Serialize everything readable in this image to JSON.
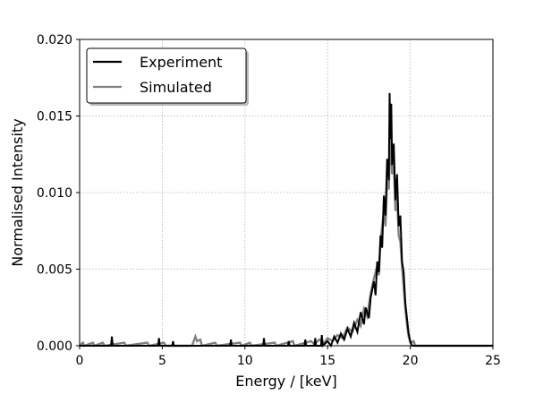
{
  "chart_data": {
    "type": "line",
    "xlabel": "Energy / [keV]",
    "ylabel": "Normalised Intensity",
    "xlim": [
      0,
      25
    ],
    "ylim": [
      0,
      0.02
    ],
    "xticks": [
      "0",
      "5",
      "10",
      "15",
      "20",
      "25"
    ],
    "yticks": [
      "0.000",
      "0.005",
      "0.010",
      "0.015",
      "0.020"
    ],
    "grid": true,
    "legend_position": "top-left",
    "series": [
      {
        "name": "Experiment",
        "color": "#000000",
        "points": [
          [
            0,
            0
          ],
          [
            1.9,
            0
          ],
          [
            1.95,
            0.0006
          ],
          [
            2.0,
            0
          ],
          [
            4.75,
            0
          ],
          [
            4.8,
            0.0005
          ],
          [
            4.85,
            0
          ],
          [
            5.6,
            0
          ],
          [
            5.65,
            0.0003
          ],
          [
            5.7,
            0
          ],
          [
            9.1,
            0
          ],
          [
            9.15,
            0.0004
          ],
          [
            9.2,
            0
          ],
          [
            11.1,
            0
          ],
          [
            11.15,
            0.0005
          ],
          [
            11.2,
            0
          ],
          [
            12.6,
            0
          ],
          [
            12.65,
            0.0003
          ],
          [
            12.7,
            0
          ],
          [
            13.6,
            0
          ],
          [
            13.65,
            0.0004
          ],
          [
            13.7,
            0
          ],
          [
            14.2,
            0
          ],
          [
            14.25,
            0.0005
          ],
          [
            14.3,
            0
          ],
          [
            14.6,
            0
          ],
          [
            14.65,
            0.0007
          ],
          [
            14.7,
            0
          ],
          [
            15.0,
            0.0003
          ],
          [
            15.2,
            0
          ],
          [
            15.4,
            0.0006
          ],
          [
            15.6,
            0.0002
          ],
          [
            15.8,
            0.0008
          ],
          [
            16.0,
            0.0004
          ],
          [
            16.2,
            0.0011
          ],
          [
            16.4,
            0.0006
          ],
          [
            16.6,
            0.0015
          ],
          [
            16.8,
            0.0009
          ],
          [
            17.0,
            0.0022
          ],
          [
            17.2,
            0.0014
          ],
          [
            17.3,
            0.0025
          ],
          [
            17.5,
            0.0018
          ],
          [
            17.6,
            0.0031
          ],
          [
            17.8,
            0.0042
          ],
          [
            17.9,
            0.0033
          ],
          [
            18.0,
            0.0055
          ],
          [
            18.1,
            0.0048
          ],
          [
            18.2,
            0.0072
          ],
          [
            18.3,
            0.0064
          ],
          [
            18.4,
            0.0098
          ],
          [
            18.5,
            0.0085
          ],
          [
            18.6,
            0.0122
          ],
          [
            18.7,
            0.0108
          ],
          [
            18.75,
            0.0165
          ],
          [
            18.8,
            0.0135
          ],
          [
            18.85,
            0.0158
          ],
          [
            18.9,
            0.0118
          ],
          [
            19.0,
            0.0132
          ],
          [
            19.1,
            0.0095
          ],
          [
            19.2,
            0.0112
          ],
          [
            19.3,
            0.0078
          ],
          [
            19.4,
            0.0085
          ],
          [
            19.5,
            0.0055
          ],
          [
            19.6,
            0.0048
          ],
          [
            19.7,
            0.0028
          ],
          [
            19.8,
            0.0018
          ],
          [
            19.9,
            0.0008
          ],
          [
            20.0,
            0.0003
          ],
          [
            20.1,
            0
          ],
          [
            25,
            0
          ]
        ]
      },
      {
        "name": "Simulated",
        "color": "#808080",
        "points": [
          [
            0,
            0
          ],
          [
            0.2,
            0.0002
          ],
          [
            0.3,
            0
          ],
          [
            0.8,
            0.0002
          ],
          [
            0.9,
            0
          ],
          [
            1.4,
            0.0002
          ],
          [
            1.5,
            0
          ],
          [
            2.7,
            0.0002
          ],
          [
            2.8,
            0
          ],
          [
            4.1,
            0.0002
          ],
          [
            4.2,
            0
          ],
          [
            5.1,
            0.0002
          ],
          [
            5.2,
            0
          ],
          [
            6.8,
            0
          ],
          [
            6.9,
            0.0003
          ],
          [
            7.0,
            0.0006
          ],
          [
            7.1,
            0.0003
          ],
          [
            7.3,
            0.0004
          ],
          [
            7.4,
            0
          ],
          [
            8.2,
            0.0002
          ],
          [
            8.3,
            0
          ],
          [
            9.7,
            0.0002
          ],
          [
            9.8,
            0
          ],
          [
            10.3,
            0.0002
          ],
          [
            10.4,
            0
          ],
          [
            11.8,
            0.0002
          ],
          [
            11.9,
            0
          ],
          [
            12.9,
            0.0003
          ],
          [
            13.0,
            0
          ],
          [
            14.0,
            0.0003
          ],
          [
            14.2,
            0.0001
          ],
          [
            14.5,
            0.0004
          ],
          [
            14.8,
            0.0002
          ],
          [
            15.0,
            0.0005
          ],
          [
            15.3,
            0.0003
          ],
          [
            15.6,
            0.0007
          ],
          [
            15.9,
            0.0005
          ],
          [
            16.2,
            0.0012
          ],
          [
            16.5,
            0.0009
          ],
          [
            16.8,
            0.0017
          ],
          [
            17.0,
            0.0013
          ],
          [
            17.2,
            0.0024
          ],
          [
            17.4,
            0.0019
          ],
          [
            17.6,
            0.0034
          ],
          [
            17.8,
            0.0044
          ],
          [
            18.0,
            0.0052
          ],
          [
            18.1,
            0.0046
          ],
          [
            18.2,
            0.0068
          ],
          [
            18.4,
            0.0088
          ],
          [
            18.5,
            0.0078
          ],
          [
            18.6,
            0.0108
          ],
          [
            18.7,
            0.0102
          ],
          [
            18.8,
            0.0138
          ],
          [
            18.9,
            0.0112
          ],
          [
            19.0,
            0.0122
          ],
          [
            19.1,
            0.0088
          ],
          [
            19.2,
            0.0098
          ],
          [
            19.3,
            0.0072
          ],
          [
            19.4,
            0.0068
          ],
          [
            19.5,
            0.0052
          ],
          [
            19.6,
            0.0038
          ],
          [
            19.7,
            0.0024
          ],
          [
            19.8,
            0.0014
          ],
          [
            19.9,
            0.0006
          ],
          [
            20.0,
            0.0002
          ],
          [
            20.2,
            0.0003
          ],
          [
            20.3,
            0
          ],
          [
            25,
            0
          ]
        ]
      }
    ]
  }
}
